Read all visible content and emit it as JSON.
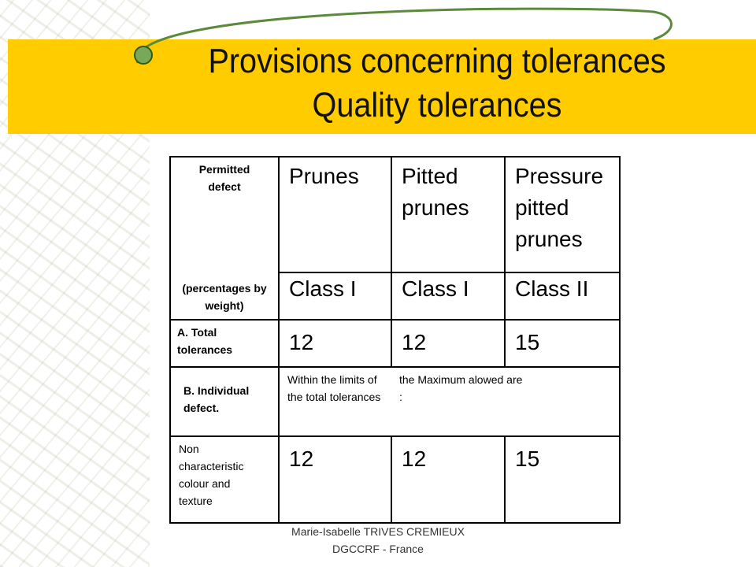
{
  "title": {
    "line1": "Provisions concerning tolerances",
    "line2": "Quality tolerances"
  },
  "table": {
    "label_top": "Permitted defect",
    "label_bottom": "(percentages by weight)",
    "products": [
      "Prunes",
      "Pitted prunes",
      "Pressure pitted prunes"
    ],
    "classes": [
      "Class I",
      "Class I",
      "Class II"
    ],
    "total": {
      "label": "A. Total tolerances",
      "values": [
        12,
        12,
        15
      ]
    },
    "individual": {
      "label": "B. Individual defect.",
      "note1": "Within the limits of the total tolerances",
      "note2": "the Maximum alowed are :"
    },
    "colour": {
      "label": "Non characteristic colour and texture",
      "values": [
        12,
        12,
        15
      ]
    }
  },
  "footer": {
    "line1": "Marie-Isabelle TRIVES CREMIEUX",
    "line2": "DGCCRF - France"
  }
}
